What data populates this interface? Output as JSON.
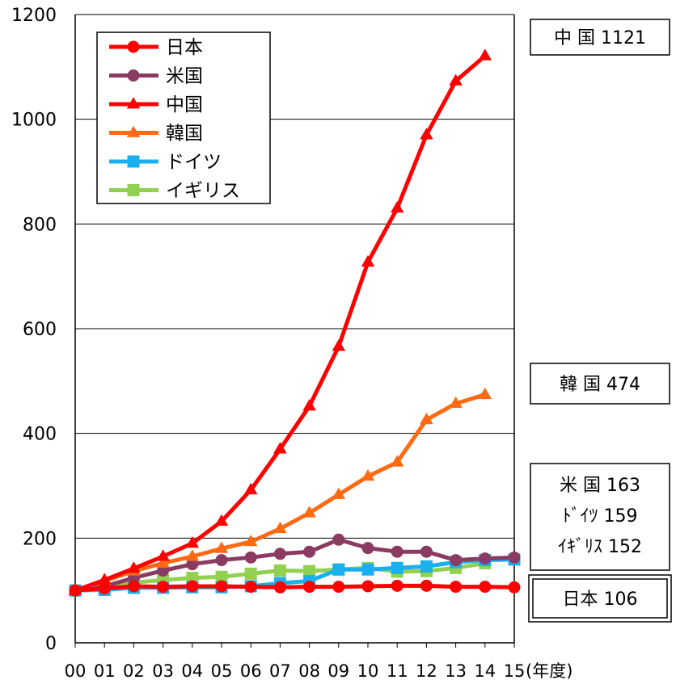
{
  "chart_data": {
    "type": "line",
    "x_unit": "(年度)",
    "categories": [
      "00",
      "01",
      "02",
      "03",
      "04",
      "05",
      "06",
      "07",
      "08",
      "09",
      "10",
      "11",
      "12",
      "13",
      "14",
      "15"
    ],
    "ylim": [
      0,
      1200
    ],
    "yticks": [
      0,
      200,
      400,
      600,
      800,
      1000,
      1200
    ],
    "grid": true,
    "legend_position": "top-left",
    "series": [
      {
        "name": "日本",
        "color": "#ff0000",
        "marker": "circle",
        "values": [
          100,
          104,
          108,
          107,
          108,
          108,
          107,
          106,
          107,
          107,
          108,
          109,
          109,
          107,
          107,
          106
        ]
      },
      {
        "name": "米国",
        "color": "#8b3a62",
        "marker": "circle",
        "values": [
          100,
          108,
          124,
          138,
          150,
          158,
          163,
          170,
          174,
          197,
          181,
          174,
          174,
          158,
          161,
          163
        ]
      },
      {
        "name": "中国",
        "color": "#ff0000",
        "marker": "triangle",
        "values": [
          100,
          120,
          142,
          165,
          190,
          232,
          292,
          370,
          452,
          566,
          727,
          830,
          970,
          1073,
          1121,
          null
        ]
      },
      {
        "name": "韓国",
        "color": "#ff6a13",
        "marker": "triangle",
        "values": [
          100,
          118,
          137,
          152,
          165,
          180,
          193,
          218,
          248,
          283,
          318,
          345,
          426,
          457,
          474,
          null
        ]
      },
      {
        "name": "ドイツ",
        "color": "#1ab0ef",
        "marker": "square",
        "values": [
          100,
          101,
          105,
          105,
          106,
          106,
          108,
          114,
          118,
          140,
          140,
          143,
          146,
          154,
          158,
          159
        ]
      },
      {
        "name": "イギリス",
        "color": "#92d050",
        "marker": "square",
        "values": [
          100,
          104,
          115,
          120,
          124,
          126,
          132,
          138,
          137,
          140,
          143,
          136,
          137,
          143,
          152,
          null
        ]
      }
    ],
    "callouts": [
      {
        "lines": [
          "中 国 1121"
        ]
      },
      {
        "lines": [
          "韓 国  474"
        ]
      },
      {
        "lines": [
          "米 国  163",
          "ﾄﾞｲﾂ   159",
          "ｲｷﾞﾘｽ 152"
        ]
      },
      {
        "lines": [
          "日本 106"
        ]
      }
    ]
  }
}
